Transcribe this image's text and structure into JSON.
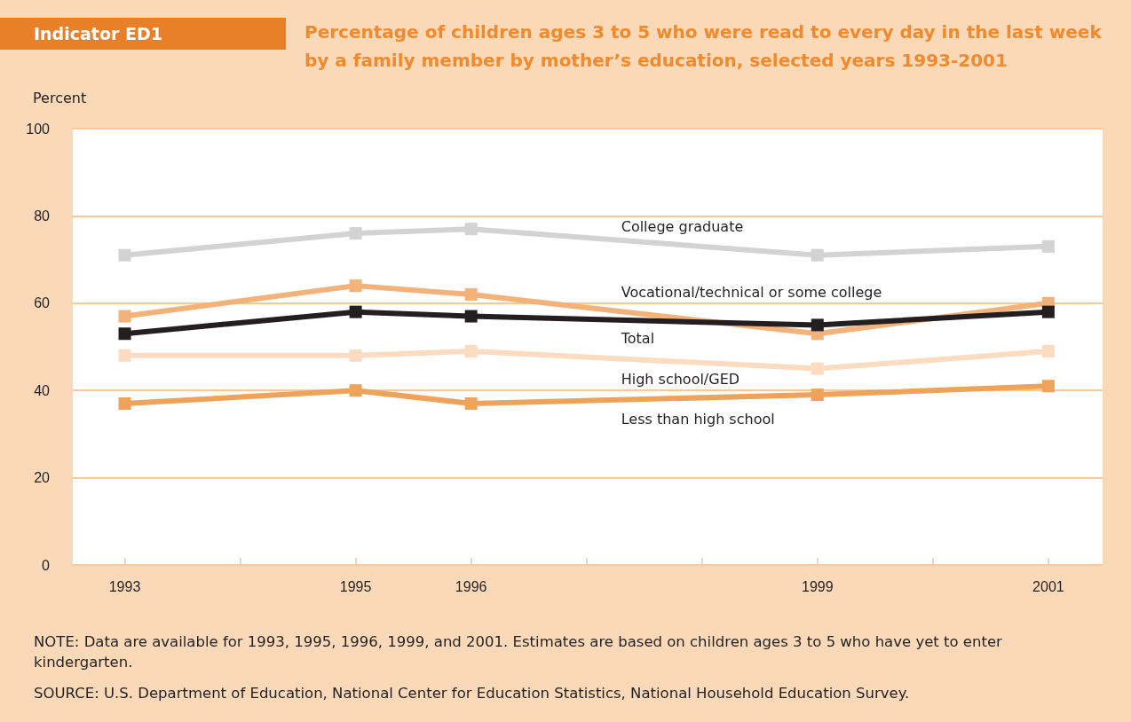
{
  "chart_data": {
    "type": "line",
    "subtitle": "Indicator ED1",
    "title": "Percentage of children ages 3 to 5 who were read to every day in the last week by a family member by mother’s education, selected years 1993-2001",
    "ylabel": "Percent",
    "x": [
      1993,
      1995,
      1996,
      1999,
      2001
    ],
    "series": [
      {
        "name": "College graduate",
        "color": "#d3d3d3",
        "values": [
          71,
          76,
          77,
          71,
          73
        ]
      },
      {
        "name": "Vocational/technical or some college",
        "color": "#f2b27a",
        "values": [
          57,
          64,
          62,
          53,
          60
        ]
      },
      {
        "name": "Total",
        "color": "#231f20",
        "values": [
          53,
          58,
          57,
          55,
          58
        ]
      },
      {
        "name": "High school/GED",
        "color": "#fbdcc0",
        "values": [
          48,
          48,
          49,
          45,
          49
        ]
      },
      {
        "name": "Less than high school",
        "color": "#eea25a",
        "values": [
          37,
          40,
          37,
          39,
          41
        ]
      }
    ],
    "xlim": [
      1992.55,
      2001.47
    ],
    "xticks": [
      1993,
      {
        "value": 1994,
        "label": null
      },
      1995,
      1996,
      {
        "value": 1997,
        "label": null
      },
      {
        "value": 1998,
        "label": null
      },
      1999,
      {
        "value": 2000,
        "label": null
      },
      2001
    ],
    "ylim": [
      0,
      100
    ],
    "yticks": [
      0,
      20,
      40,
      60,
      80,
      100
    ],
    "grid": "y",
    "legend": false,
    "marker": "square",
    "line_style": "solid",
    "annotations": [
      "NOTE: Data are available for 1993, 1995, 1996, 1999, and 2001.  Estimates are based on children ages 3 to 5 who have yet to enter kindergarten.",
      "SOURCE: U.S. Department of Education, National Center for Education Statistics, National Household Education Survey."
    ]
  }
}
